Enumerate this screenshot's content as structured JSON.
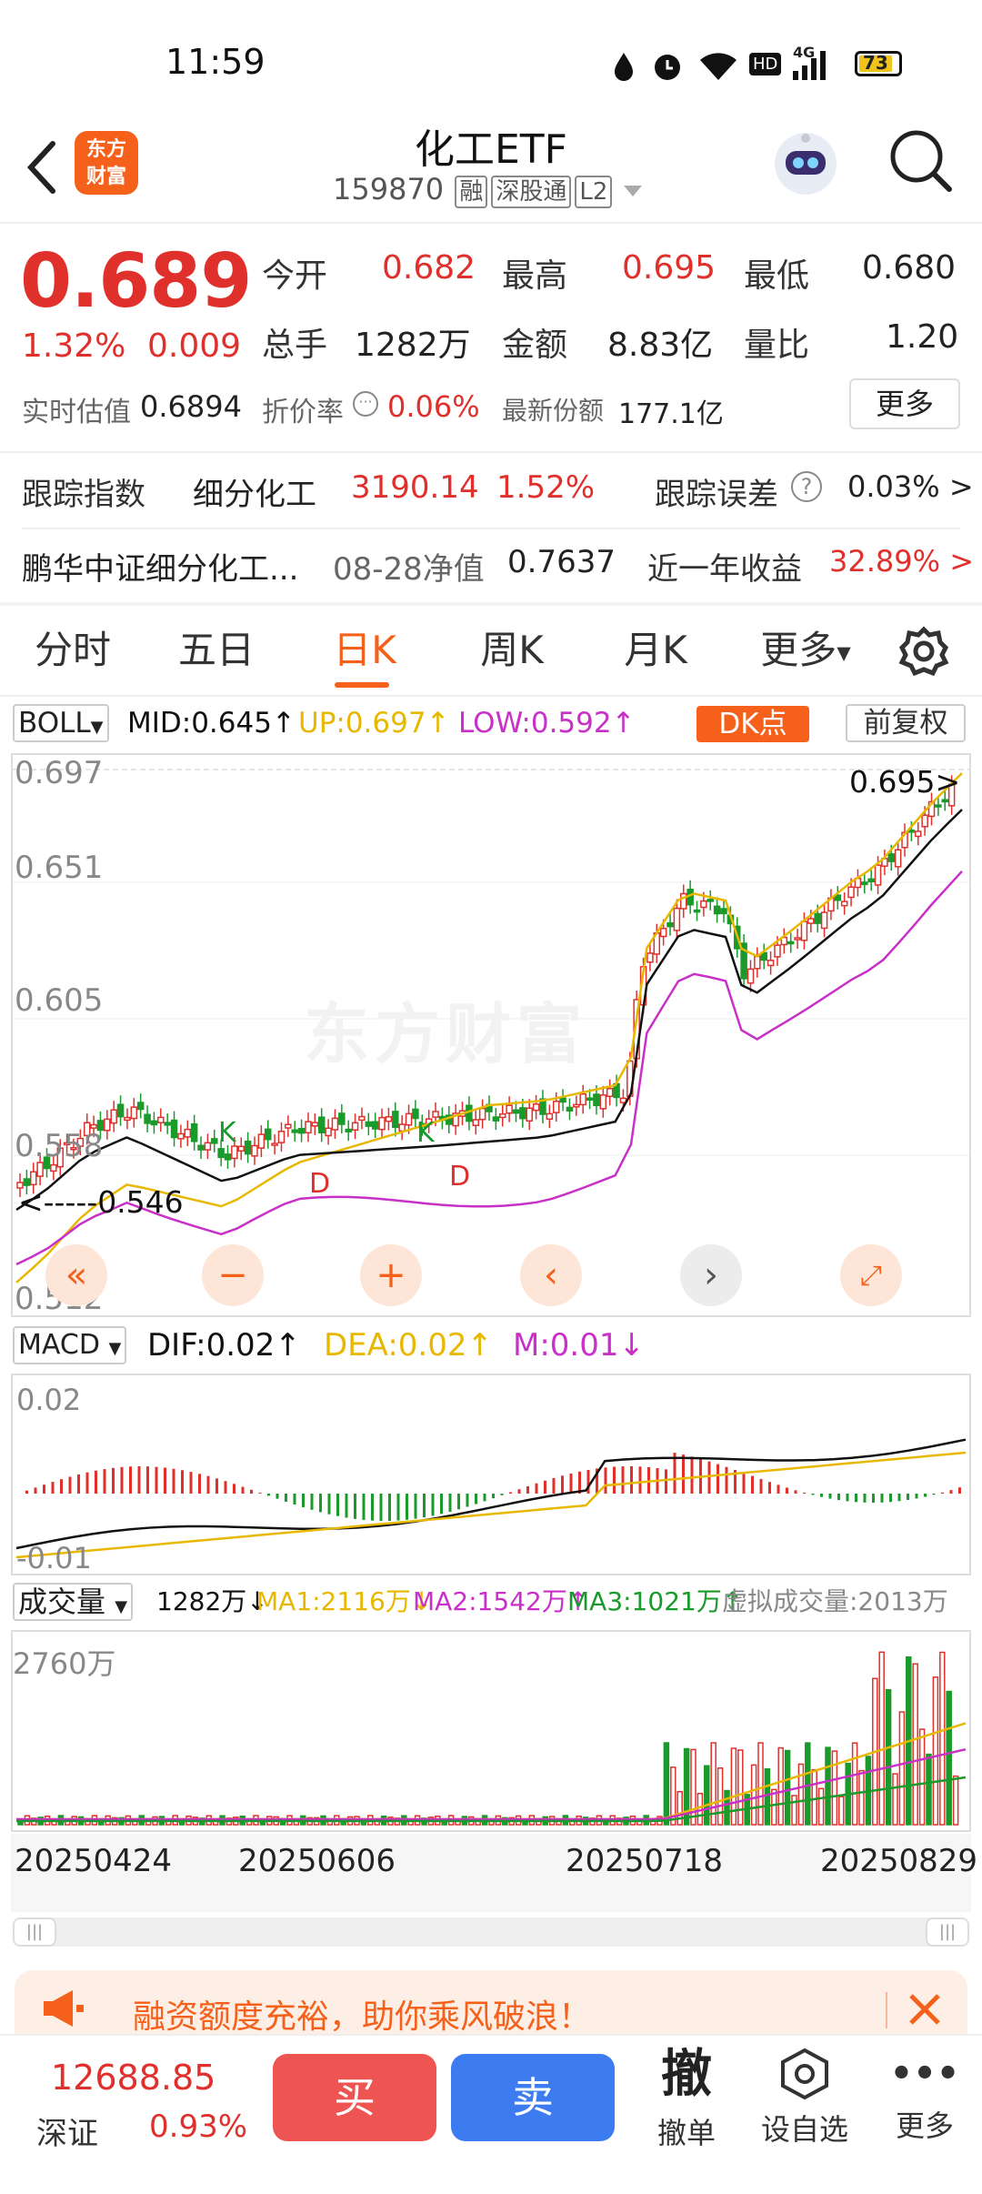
{
  "status": {
    "time": "11:59",
    "battery": "73",
    "network": "4G"
  },
  "header": {
    "title": "化工ETF",
    "code": "159870",
    "tags": [
      "融",
      "深股通",
      "L2"
    ],
    "logo_top": "东方",
    "logo_bottom": "财富"
  },
  "quote": {
    "price": "0.689",
    "pct": "1.32%",
    "change": "0.009",
    "open_label": "今开",
    "open": "0.682",
    "high_label": "最高",
    "high": "0.695",
    "low_label": "最低",
    "low": "0.680",
    "vol_label": "总手",
    "vol": "1282万",
    "amount_label": "金额",
    "amount": "8.83亿",
    "ratio_label": "量比",
    "ratio": "1.20",
    "est_label": "实时估值",
    "est": "0.6894",
    "disc_label": "折价率",
    "disc": "0.06%",
    "share_label": "最新份额",
    "share": "177.1亿",
    "more": "更多"
  },
  "track": {
    "label": "跟踪指数",
    "name": "细分化工",
    "value": "3190.14",
    "pct": "1.52%",
    "err_label": "跟踪误差",
    "err": "0.03% >"
  },
  "fund": {
    "name": "鹏华中证细分化工...",
    "nav_label": "08-28净值",
    "nav": "0.7637",
    "year_label": "近一年收益",
    "year": "32.89% >"
  },
  "tabs": [
    "分时",
    "五日",
    "日K",
    "周K",
    "月K",
    "更多"
  ],
  "active_tab": "日K",
  "boll": {
    "sel": "BOLL",
    "mid": "MID:0.645",
    "up": "UP:0.697",
    "low": "LOW:0.592",
    "dk": "DK点",
    "fq": "前复权"
  },
  "main_chart": {
    "y_labels": [
      "0.697",
      "0.651",
      "0.605",
      "0.558",
      "0.512"
    ],
    "high_mark": "0.695",
    "low_mark": "<-----0.546",
    "watermark": "东方财富",
    "k_mark": "K",
    "d_mark": "D"
  },
  "macd": {
    "sel": "MACD",
    "dif": "DIF:0.02",
    "dea": "DEA:0.02",
    "m": "M:0.01",
    "y_top": "0.02",
    "y_bot": "-0.01"
  },
  "volume": {
    "sel": "成交量",
    "val": "1282万",
    "ma1": "MA1:2116万",
    "ma2": "MA2:1542万",
    "ma3": "MA3:1021万",
    "virt": "虚拟成交量:2013万",
    "y_top": "2760万"
  },
  "dates": [
    "20250424",
    "20250606",
    "20250718",
    "20250829"
  ],
  "banner": {
    "text": "融资额度充裕，助你乘风破浪！"
  },
  "bottom": {
    "index_value": "12688.85",
    "index_name": "深证",
    "index_pct": "0.93%",
    "buy": "买",
    "sell": "卖",
    "cancel_big": "撤",
    "cancel": "撤单",
    "watch": "设自选",
    "more": "更多"
  },
  "colors": {
    "up": "#e0302c",
    "down": "#1a9a2a",
    "accent": "#f5611b",
    "up_band": "#e8b800",
    "low_band": "#c830c8",
    "sell_btn": "#3c7cf0",
    "buy_btn": "#ee5552"
  }
}
